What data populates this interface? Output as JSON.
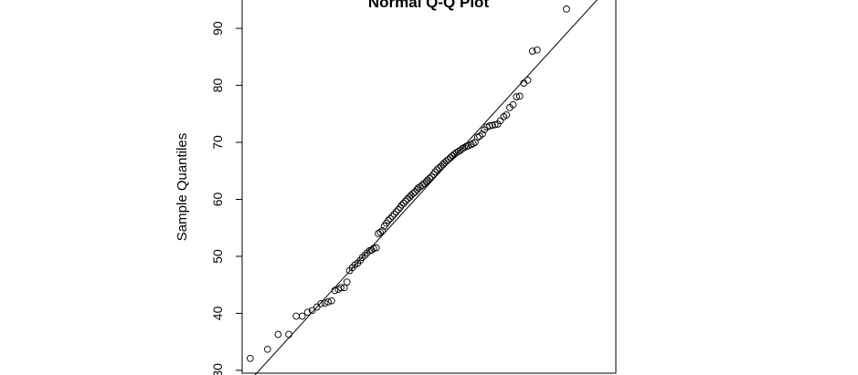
{
  "chart_data": {
    "type": "scatter",
    "title": "Normal Q-Q Plot",
    "xlabel": "",
    "ylabel": "Sample Quantiles",
    "yticks": [
      30,
      40,
      50,
      60,
      70,
      80,
      90
    ],
    "ytick_labels": [
      "30",
      "40",
      "50",
      "60",
      "70",
      "80",
      "90"
    ],
    "xlim": [
      -2.7,
      2.9
    ],
    "ylim": [
      29.5,
      95.3
    ],
    "reference_line": {
      "slope": 12.84,
      "intercept": 61.38
    },
    "points": [
      [
        -2.58,
        32.1
      ],
      [
        -2.32,
        33.7
      ],
      [
        -2.16,
        36.3
      ],
      [
        -2.0,
        36.3
      ],
      [
        -1.89,
        39.5
      ],
      [
        -1.8,
        39.5
      ],
      [
        -1.72,
        40.2
      ],
      [
        -1.65,
        40.5
      ],
      [
        -1.58,
        41.1
      ],
      [
        -1.52,
        41.7
      ],
      [
        -1.46,
        41.8
      ],
      [
        -1.41,
        42.0
      ],
      [
        -1.36,
        42.2
      ],
      [
        -1.31,
        44.0
      ],
      [
        -1.26,
        44.2
      ],
      [
        -1.22,
        44.5
      ],
      [
        -1.17,
        44.5
      ],
      [
        -1.13,
        45.5
      ],
      [
        -1.09,
        47.5
      ],
      [
        -1.05,
        48.0
      ],
      [
        -1.01,
        48.5
      ],
      [
        -0.97,
        48.8
      ],
      [
        -0.93,
        49.3
      ],
      [
        -0.9,
        49.8
      ],
      [
        -0.86,
        50.2
      ],
      [
        -0.83,
        50.6
      ],
      [
        -0.79,
        51.0
      ],
      [
        -0.76,
        51.1
      ],
      [
        -0.73,
        51.4
      ],
      [
        -0.69,
        51.5
      ],
      [
        -0.66,
        54.0
      ],
      [
        -0.63,
        54.2
      ],
      [
        -0.6,
        54.5
      ],
      [
        -0.57,
        55.3
      ],
      [
        -0.54,
        55.8
      ],
      [
        -0.51,
        56.3
      ],
      [
        -0.48,
        56.6
      ],
      [
        -0.45,
        57.0
      ],
      [
        -0.42,
        57.4
      ],
      [
        -0.39,
        57.8
      ],
      [
        -0.36,
        58.2
      ],
      [
        -0.33,
        58.6
      ],
      [
        -0.31,
        59.0
      ],
      [
        -0.28,
        59.3
      ],
      [
        -0.25,
        59.7
      ],
      [
        -0.22,
        60.1
      ],
      [
        -0.19,
        60.4
      ],
      [
        -0.17,
        60.7
      ],
      [
        -0.14,
        61.0
      ],
      [
        -0.11,
        61.3
      ],
      [
        -0.08,
        61.7
      ],
      [
        -0.06,
        62.0
      ],
      [
        -0.03,
        62.2
      ],
      [
        0.0,
        62.5
      ],
      [
        0.03,
        62.8
      ],
      [
        0.06,
        63.1
      ],
      [
        0.08,
        63.4
      ],
      [
        0.11,
        63.7
      ],
      [
        0.14,
        64.0
      ],
      [
        0.17,
        64.4
      ],
      [
        0.19,
        64.8
      ],
      [
        0.22,
        65.2
      ],
      [
        0.25,
        65.5
      ],
      [
        0.28,
        65.8
      ],
      [
        0.31,
        66.1
      ],
      [
        0.33,
        66.4
      ],
      [
        0.36,
        66.7
      ],
      [
        0.39,
        67.0
      ],
      [
        0.42,
        67.3
      ],
      [
        0.45,
        67.6
      ],
      [
        0.48,
        67.9
      ],
      [
        0.51,
        68.2
      ],
      [
        0.54,
        68.4
      ],
      [
        0.57,
        68.6
      ],
      [
        0.6,
        68.9
      ],
      [
        0.63,
        69.1
      ],
      [
        0.66,
        69.3
      ],
      [
        0.69,
        69.4
      ],
      [
        0.73,
        69.6
      ],
      [
        0.76,
        69.8
      ],
      [
        0.79,
        70.0
      ],
      [
        0.83,
        70.9
      ],
      [
        0.86,
        71.1
      ],
      [
        0.9,
        71.5
      ],
      [
        0.93,
        72.2
      ],
      [
        0.97,
        72.7
      ],
      [
        1.01,
        72.9
      ],
      [
        1.05,
        73.0
      ],
      [
        1.09,
        73.1
      ],
      [
        1.13,
        73.2
      ],
      [
        1.17,
        73.8
      ],
      [
        1.22,
        74.5
      ],
      [
        1.26,
        74.8
      ],
      [
        1.31,
        76.1
      ],
      [
        1.36,
        76.6
      ],
      [
        1.41,
        78.0
      ],
      [
        1.46,
        78.1
      ],
      [
        1.52,
        80.4
      ],
      [
        1.58,
        80.9
      ],
      [
        1.65,
        86.0
      ],
      [
        1.72,
        86.2
      ],
      [
        2.16,
        93.4
      ]
    ]
  }
}
